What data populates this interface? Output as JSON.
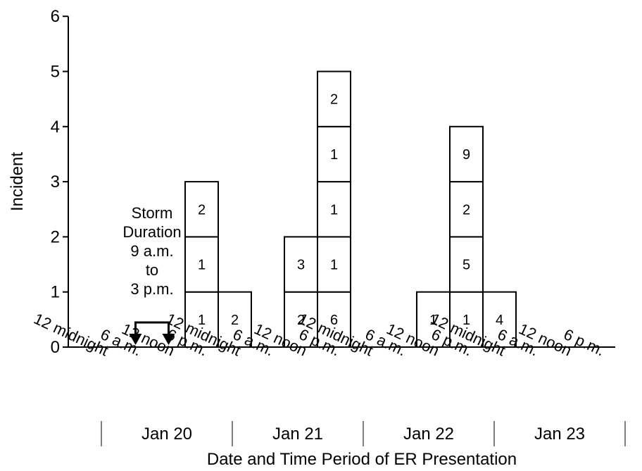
{
  "chart_data": {
    "type": "bar",
    "stacked_cells": true,
    "xlabel": "Date and Time Period of ER Presentation",
    "ylabel": "Incident",
    "ylim": [
      0,
      6
    ],
    "y_ticks": [
      "0",
      "1",
      "2",
      "3",
      "4",
      "5",
      "6"
    ],
    "grid": false,
    "time_labels": [
      "12 midnight",
      "6 a.m.",
      "12 noon",
      "6 p.m."
    ],
    "dates": [
      "Jan 20",
      "Jan 21",
      "Jan 22",
      "Jan 23"
    ],
    "bars": [
      {
        "date": "Jan 20",
        "period": "6 p.m.",
        "count": 3,
        "cell_labels": [
          "1",
          "1",
          "2"
        ]
      },
      {
        "date": "Jan 21",
        "period": "12 midnight",
        "count": 1,
        "cell_labels": [
          "2"
        ]
      },
      {
        "date": "Jan 21",
        "period": "12 noon",
        "count": 2,
        "cell_labels": [
          "2",
          "3"
        ]
      },
      {
        "date": "Jan 21",
        "period": "6 p.m.",
        "count": 5,
        "cell_labels": [
          "6",
          "1",
          "1",
          "1",
          "2"
        ]
      },
      {
        "date": "Jan 22",
        "period": "12 noon",
        "count": 1,
        "cell_labels": [
          "1"
        ]
      },
      {
        "date": "Jan 22",
        "period": "6 p.m.",
        "count": 4,
        "cell_labels": [
          "1",
          "5",
          "2",
          "9"
        ]
      },
      {
        "date": "Jan 23",
        "period": "12 midnight",
        "count": 1,
        "cell_labels": [
          "4"
        ]
      }
    ],
    "annotation": {
      "lines": [
        "Storm",
        "Duration",
        "9 a.m.",
        "to",
        "3 p.m."
      ],
      "from": "9 a.m. Jan 20",
      "to": "3 p.m. Jan 20"
    }
  }
}
